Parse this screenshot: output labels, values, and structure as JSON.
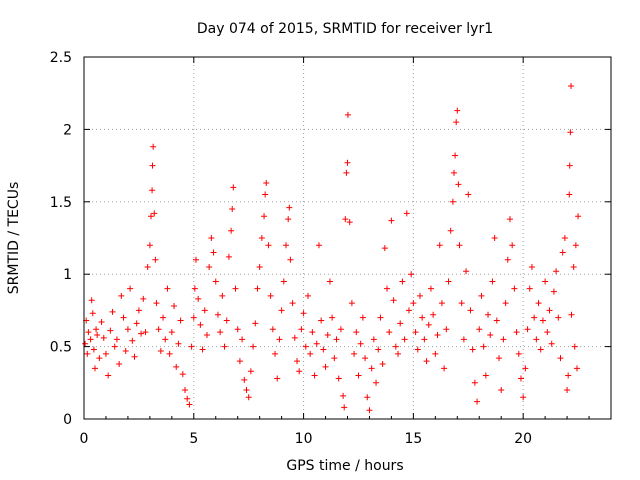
{
  "chart_data": {
    "type": "scatter",
    "title": "Day 074 of 2015, SRMTID for receiver lyr1",
    "xlabel": "GPS time / hours",
    "ylabel": "SRMTID / TECUs",
    "xlim": [
      0,
      24
    ],
    "ylim": [
      0,
      2.5
    ],
    "xticks": [
      0,
      5,
      10,
      15,
      20
    ],
    "xtick_labels": [
      "0",
      "5",
      "10",
      "15",
      "20"
    ],
    "yticks": [
      0,
      0.5,
      1,
      1.5,
      2,
      2.5
    ],
    "ytick_labels": [
      "0",
      "0.5",
      "1",
      "1.5",
      "2",
      "2.5"
    ],
    "grid": true,
    "marker": "+",
    "marker_color": "#ff0000",
    "series": [
      {
        "name": "SRMTID",
        "points": [
          [
            0.05,
            0.52
          ],
          [
            0.1,
            0.68
          ],
          [
            0.15,
            0.45
          ],
          [
            0.2,
            0.6
          ],
          [
            0.3,
            0.55
          ],
          [
            0.35,
            0.82
          ],
          [
            0.4,
            0.73
          ],
          [
            0.45,
            0.48
          ],
          [
            0.5,
            0.35
          ],
          [
            0.55,
            0.62
          ],
          [
            0.6,
            0.58
          ],
          [
            0.7,
            0.42
          ],
          [
            0.8,
            0.67
          ],
          [
            0.9,
            0.56
          ],
          [
            1.0,
            0.45
          ],
          [
            1.1,
            0.3
          ],
          [
            1.2,
            0.61
          ],
          [
            1.3,
            0.74
          ],
          [
            1.4,
            0.5
          ],
          [
            1.5,
            0.55
          ],
          [
            1.6,
            0.38
          ],
          [
            1.7,
            0.85
          ],
          [
            1.8,
            0.7
          ],
          [
            1.9,
            0.47
          ],
          [
            2.0,
            0.62
          ],
          [
            2.1,
            0.9
          ],
          [
            2.2,
            0.54
          ],
          [
            2.3,
            0.43
          ],
          [
            2.4,
            0.66
          ],
          [
            2.5,
            0.75
          ],
          [
            2.6,
            0.59
          ],
          [
            2.7,
            0.83
          ],
          [
            2.8,
            0.6
          ],
          [
            2.9,
            1.05
          ],
          [
            3.0,
            1.2
          ],
          [
            3.05,
            1.4
          ],
          [
            3.1,
            1.58
          ],
          [
            3.12,
            1.75
          ],
          [
            3.15,
            1.88
          ],
          [
            3.2,
            1.42
          ],
          [
            3.25,
            1.1
          ],
          [
            3.3,
            0.8
          ],
          [
            3.4,
            0.62
          ],
          [
            3.5,
            0.47
          ],
          [
            3.6,
            0.7
          ],
          [
            3.7,
            0.55
          ],
          [
            3.8,
            0.9
          ],
          [
            3.9,
            0.45
          ],
          [
            4.0,
            0.6
          ],
          [
            4.1,
            0.78
          ],
          [
            4.2,
            0.36
          ],
          [
            4.3,
            0.52
          ],
          [
            4.4,
            0.68
          ],
          [
            4.5,
            0.31
          ],
          [
            4.6,
            0.2
          ],
          [
            4.7,
            0.14
          ],
          [
            4.8,
            0.1
          ],
          [
            4.9,
            0.5
          ],
          [
            5.0,
            0.7
          ],
          [
            5.05,
            0.9
          ],
          [
            5.1,
            1.1
          ],
          [
            5.2,
            0.83
          ],
          [
            5.3,
            0.65
          ],
          [
            5.4,
            0.48
          ],
          [
            5.5,
            0.75
          ],
          [
            5.6,
            0.58
          ],
          [
            5.7,
            1.05
          ],
          [
            5.8,
            1.25
          ],
          [
            5.9,
            1.15
          ],
          [
            6.0,
            0.95
          ],
          [
            6.1,
            0.72
          ],
          [
            6.2,
            0.6
          ],
          [
            6.3,
            0.85
          ],
          [
            6.4,
            0.5
          ],
          [
            6.5,
            0.68
          ],
          [
            6.6,
            1.12
          ],
          [
            6.7,
            1.3
          ],
          [
            6.75,
            1.45
          ],
          [
            6.8,
            1.6
          ],
          [
            6.9,
            0.9
          ],
          [
            7.0,
            0.62
          ],
          [
            7.1,
            0.4
          ],
          [
            7.2,
            0.55
          ],
          [
            7.3,
            0.27
          ],
          [
            7.4,
            0.2
          ],
          [
            7.5,
            0.15
          ],
          [
            7.6,
            0.33
          ],
          [
            7.7,
            0.5
          ],
          [
            7.8,
            0.66
          ],
          [
            7.9,
            0.9
          ],
          [
            8.0,
            1.05
          ],
          [
            8.1,
            1.25
          ],
          [
            8.2,
            1.4
          ],
          [
            8.25,
            1.55
          ],
          [
            8.3,
            1.63
          ],
          [
            8.4,
            1.2
          ],
          [
            8.5,
            0.85
          ],
          [
            8.6,
            0.62
          ],
          [
            8.7,
            0.45
          ],
          [
            8.8,
            0.28
          ],
          [
            8.9,
            0.55
          ],
          [
            9.0,
            0.75
          ],
          [
            9.1,
            0.95
          ],
          [
            9.2,
            1.2
          ],
          [
            9.3,
            1.38
          ],
          [
            9.35,
            1.46
          ],
          [
            9.4,
            1.1
          ],
          [
            9.5,
            0.8
          ],
          [
            9.6,
            0.56
          ],
          [
            9.7,
            0.4
          ],
          [
            9.8,
            0.33
          ],
          [
            9.9,
            0.62
          ],
          [
            10.0,
            0.73
          ],
          [
            10.1,
            0.5
          ],
          [
            10.2,
            0.85
          ],
          [
            10.3,
            0.45
          ],
          [
            10.4,
            0.6
          ],
          [
            10.5,
            0.3
          ],
          [
            10.6,
            0.52
          ],
          [
            10.7,
            1.2
          ],
          [
            10.8,
            0.68
          ],
          [
            10.9,
            0.48
          ],
          [
            11.0,
            0.36
          ],
          [
            11.1,
            0.58
          ],
          [
            11.2,
            0.95
          ],
          [
            11.3,
            0.7
          ],
          [
            11.4,
            0.42
          ],
          [
            11.5,
            0.55
          ],
          [
            11.6,
            0.28
          ],
          [
            11.7,
            0.62
          ],
          [
            11.8,
            0.16
          ],
          [
            11.85,
            0.08
          ],
          [
            11.9,
            1.38
          ],
          [
            11.95,
            1.7
          ],
          [
            12.0,
            1.77
          ],
          [
            12.02,
            2.1
          ],
          [
            12.1,
            1.36
          ],
          [
            12.2,
            0.8
          ],
          [
            12.3,
            0.45
          ],
          [
            12.4,
            0.6
          ],
          [
            12.5,
            0.3
          ],
          [
            12.6,
            0.52
          ],
          [
            12.7,
            0.7
          ],
          [
            12.8,
            0.42
          ],
          [
            12.9,
            0.15
          ],
          [
            13.0,
            0.06
          ],
          [
            13.1,
            0.35
          ],
          [
            13.2,
            0.55
          ],
          [
            13.3,
            0.25
          ],
          [
            13.4,
            0.48
          ],
          [
            13.5,
            0.7
          ],
          [
            13.6,
            0.38
          ],
          [
            13.7,
            1.18
          ],
          [
            13.8,
            0.9
          ],
          [
            13.9,
            0.6
          ],
          [
            14.0,
            1.37
          ],
          [
            14.1,
            0.82
          ],
          [
            14.2,
            0.5
          ],
          [
            14.3,
            0.45
          ],
          [
            14.4,
            0.66
          ],
          [
            14.5,
            0.95
          ],
          [
            14.6,
            0.55
          ],
          [
            14.7,
            1.42
          ],
          [
            14.8,
            0.75
          ],
          [
            14.9,
            1.0
          ],
          [
            15.0,
            0.8
          ],
          [
            15.1,
            0.6
          ],
          [
            15.2,
            0.48
          ],
          [
            15.3,
            0.85
          ],
          [
            15.4,
            0.7
          ],
          [
            15.5,
            0.55
          ],
          [
            15.6,
            0.4
          ],
          [
            15.7,
            0.65
          ],
          [
            15.8,
            0.9
          ],
          [
            15.9,
            0.72
          ],
          [
            16.0,
            0.45
          ],
          [
            16.1,
            0.58
          ],
          [
            16.2,
            1.2
          ],
          [
            16.3,
            0.8
          ],
          [
            16.4,
            0.35
          ],
          [
            16.5,
            0.62
          ],
          [
            16.6,
            0.95
          ],
          [
            16.7,
            1.3
          ],
          [
            16.8,
            1.5
          ],
          [
            16.85,
            1.7
          ],
          [
            16.9,
            1.82
          ],
          [
            16.95,
            2.05
          ],
          [
            17.0,
            2.13
          ],
          [
            17.05,
            1.62
          ],
          [
            17.1,
            1.2
          ],
          [
            17.2,
            0.8
          ],
          [
            17.3,
            0.55
          ],
          [
            17.4,
            1.02
          ],
          [
            17.5,
            1.55
          ],
          [
            17.6,
            0.75
          ],
          [
            17.7,
            0.48
          ],
          [
            17.8,
            0.25
          ],
          [
            17.9,
            0.12
          ],
          [
            18.0,
            0.62
          ],
          [
            18.1,
            0.85
          ],
          [
            18.2,
            0.5
          ],
          [
            18.3,
            0.3
          ],
          [
            18.4,
            0.72
          ],
          [
            18.5,
            0.58
          ],
          [
            18.6,
            0.95
          ],
          [
            18.7,
            1.25
          ],
          [
            18.8,
            0.68
          ],
          [
            18.9,
            0.42
          ],
          [
            19.0,
            0.2
          ],
          [
            19.1,
            0.55
          ],
          [
            19.2,
            0.8
          ],
          [
            19.3,
            1.1
          ],
          [
            19.4,
            1.38
          ],
          [
            19.5,
            1.2
          ],
          [
            19.6,
            0.9
          ],
          [
            19.7,
            0.6
          ],
          [
            19.8,
            0.45
          ],
          [
            19.9,
            0.28
          ],
          [
            20.0,
            0.15
          ],
          [
            20.1,
            0.35
          ],
          [
            20.2,
            0.62
          ],
          [
            20.3,
            0.9
          ],
          [
            20.4,
            1.05
          ],
          [
            20.5,
            0.7
          ],
          [
            20.6,
            0.55
          ],
          [
            20.7,
            0.8
          ],
          [
            20.8,
            0.48
          ],
          [
            20.9,
            0.68
          ],
          [
            21.0,
            0.95
          ],
          [
            21.1,
            0.6
          ],
          [
            21.2,
            0.75
          ],
          [
            21.3,
            0.52
          ],
          [
            21.4,
            0.88
          ],
          [
            21.5,
            1.02
          ],
          [
            21.6,
            0.7
          ],
          [
            21.7,
            0.42
          ],
          [
            21.8,
            1.15
          ],
          [
            21.9,
            1.25
          ],
          [
            22.0,
            0.2
          ],
          [
            22.05,
            0.3
          ],
          [
            22.1,
            1.55
          ],
          [
            22.12,
            1.75
          ],
          [
            22.15,
            1.98
          ],
          [
            22.18,
            2.3
          ],
          [
            22.2,
            0.72
          ],
          [
            22.3,
            1.05
          ],
          [
            22.35,
            0.5
          ],
          [
            22.4,
            1.2
          ],
          [
            22.45,
            0.35
          ],
          [
            22.5,
            1.4
          ]
        ]
      }
    ]
  }
}
